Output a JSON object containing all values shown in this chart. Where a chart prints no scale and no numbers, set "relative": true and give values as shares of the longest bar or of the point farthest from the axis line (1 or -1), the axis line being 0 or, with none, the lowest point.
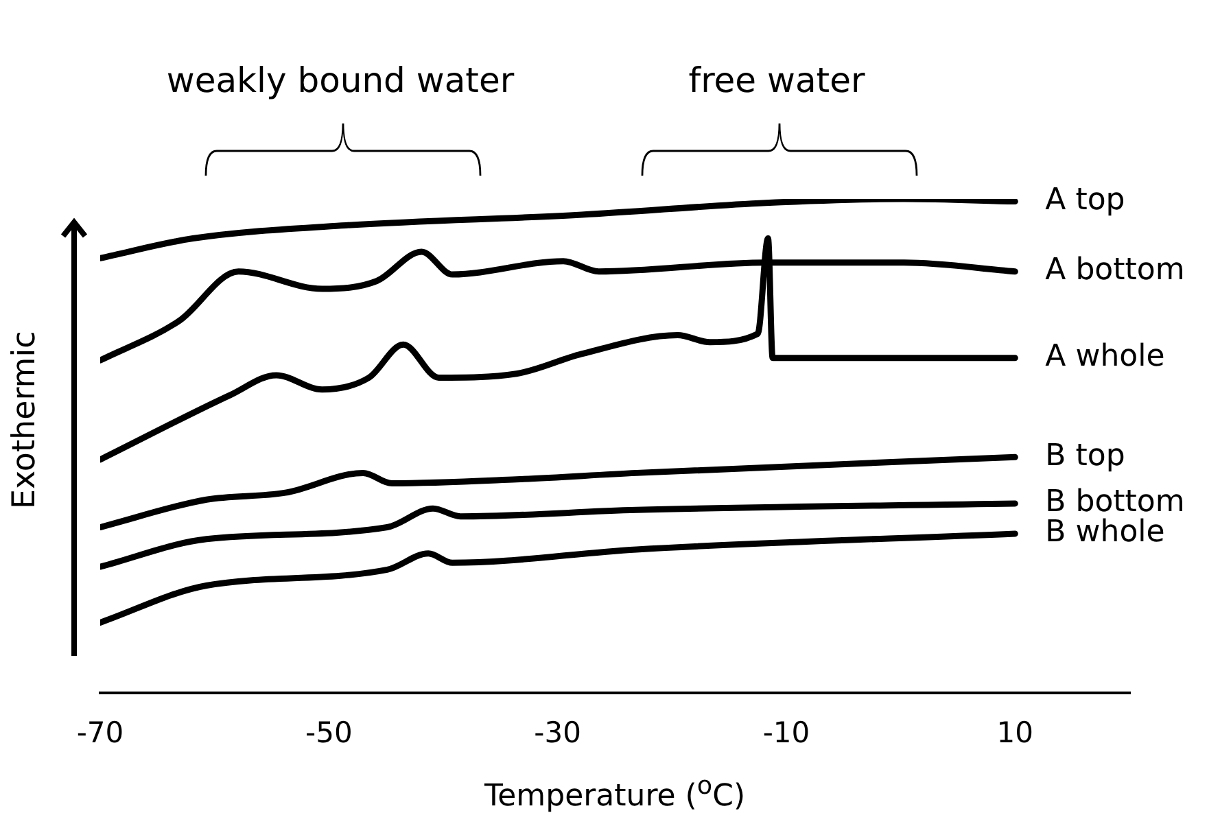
{
  "chart_data": {
    "type": "line",
    "relative": true,
    "xlabel": "Temperature ($^{o}$C)",
    "ylabel": "Exothermic",
    "xlim": [
      -70,
      20
    ],
    "xticks": [
      -70,
      -50,
      -30,
      -10,
      10
    ],
    "grid": false,
    "legend": false,
    "marker": "none",
    "line_style": "solid",
    "annotations": [
      "weakly bound water",
      "free water"
    ],
    "series": [
      {
        "name": "A top",
        "color": "#000000",
        "x": [
          -70,
          -61.9,
          -48.9,
          -27.9,
          -11.8,
          0.3,
          10
        ],
        "values": [
          0.88,
          0.92,
          0.946,
          0.968,
          0.992,
          1.0,
          0.995
        ]
      },
      {
        "name": "A bottom",
        "color": "#000000",
        "x": [
          -70,
          -63.1,
          -57.9,
          -50.6,
          -45.8,
          -41.9,
          -39.2,
          -29.5,
          -26.4,
          -11.8,
          0.3,
          10
        ],
        "values": [
          0.673,
          0.753,
          0.853,
          0.818,
          0.834,
          0.893,
          0.847,
          0.874,
          0.853,
          0.871,
          0.871,
          0.853
        ]
      },
      {
        "name": "A whole",
        "color": "#000000",
        "x": [
          -70,
          -58.6,
          -54.6,
          -50.6,
          -46.5,
          -43.5,
          -40.4,
          -33.6,
          -27.9,
          -19.5,
          -16.7,
          -12.5,
          -11.6,
          -11.2,
          10
        ],
        "values": [
          0.472,
          0.603,
          0.643,
          0.614,
          0.638,
          0.705,
          0.638,
          0.646,
          0.686,
          0.724,
          0.71,
          0.727,
          0.92,
          0.678,
          0.678
        ]
      },
      {
        "name": "B top",
        "color": "#000000",
        "x": [
          -70,
          -60.7,
          -53.8,
          -47,
          -44.5,
          -33.6,
          -23.1,
          10
        ],
        "values": [
          0.335,
          0.391,
          0.405,
          0.445,
          0.424,
          0.432,
          0.445,
          0.477
        ]
      },
      {
        "name": "B bottom",
        "color": "#000000",
        "x": [
          -70,
          -60.7,
          -44.9,
          -40.9,
          -38.5,
          -23.1,
          10
        ],
        "values": [
          0.255,
          0.311,
          0.335,
          0.373,
          0.357,
          0.37,
          0.383
        ]
      },
      {
        "name": "B whole",
        "color": "#000000",
        "x": [
          -70,
          -60.7,
          -44.9,
          -41.3,
          -39.2,
          -23.1,
          10
        ],
        "values": [
          0.142,
          0.217,
          0.249,
          0.282,
          0.263,
          0.29,
          0.322
        ]
      }
    ]
  }
}
